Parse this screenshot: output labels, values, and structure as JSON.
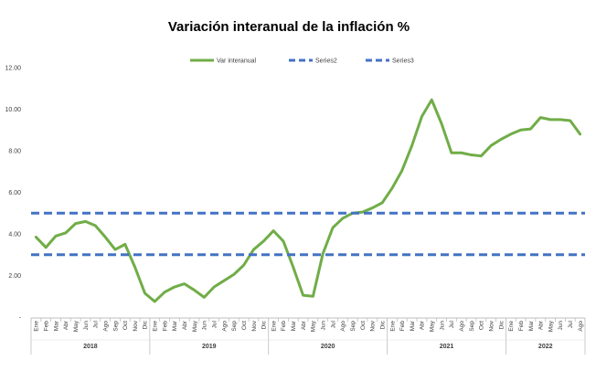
{
  "chart_data": {
    "type": "line",
    "title": "Variación interanual de la inflación %",
    "ylim": [
      0,
      12
    ],
    "y_ticks": [
      "-",
      "2.00",
      "4.00",
      "6.00",
      "8.00",
      "10.00",
      "12.00"
    ],
    "y_tick_values": [
      0,
      2,
      4,
      6,
      8,
      10,
      12
    ],
    "grid": false,
    "legend_position": "top",
    "months": [
      "Ene",
      "Feb",
      "Mar",
      "Abr",
      "May",
      "Jun",
      "Jul",
      "Ago",
      "Sep",
      "Oct",
      "Nov",
      "Dic"
    ],
    "years": [
      "2018",
      "2019",
      "2020",
      "2021",
      "2022"
    ],
    "last_year_months": 8,
    "series": [
      {
        "name": "Var interanual",
        "color": "#70ad47",
        "style": "solid",
        "values": [
          3.85,
          3.35,
          3.9,
          4.05,
          4.5,
          4.6,
          4.4,
          3.85,
          3.25,
          3.5,
          2.4,
          1.15,
          0.75,
          1.2,
          1.45,
          1.6,
          1.3,
          0.95,
          1.45,
          1.75,
          2.05,
          2.5,
          3.25,
          3.65,
          4.15,
          3.65,
          2.4,
          1.05,
          1.0,
          3.05,
          4.3,
          4.75,
          5.0,
          5.05,
          5.25,
          5.5,
          6.2,
          7.05,
          8.25,
          9.65,
          10.45,
          9.3,
          7.9,
          7.9,
          7.8,
          7.75,
          8.25,
          8.55,
          8.8,
          9.0,
          9.05,
          9.6,
          9.5,
          9.5,
          9.45,
          8.8
        ]
      },
      {
        "name": "Series2",
        "color": "#4472c4",
        "style": "dashed",
        "constant": 5.0
      },
      {
        "name": "Series3",
        "color": "#4472c4",
        "style": "dashed",
        "constant": 3.0
      }
    ]
  }
}
